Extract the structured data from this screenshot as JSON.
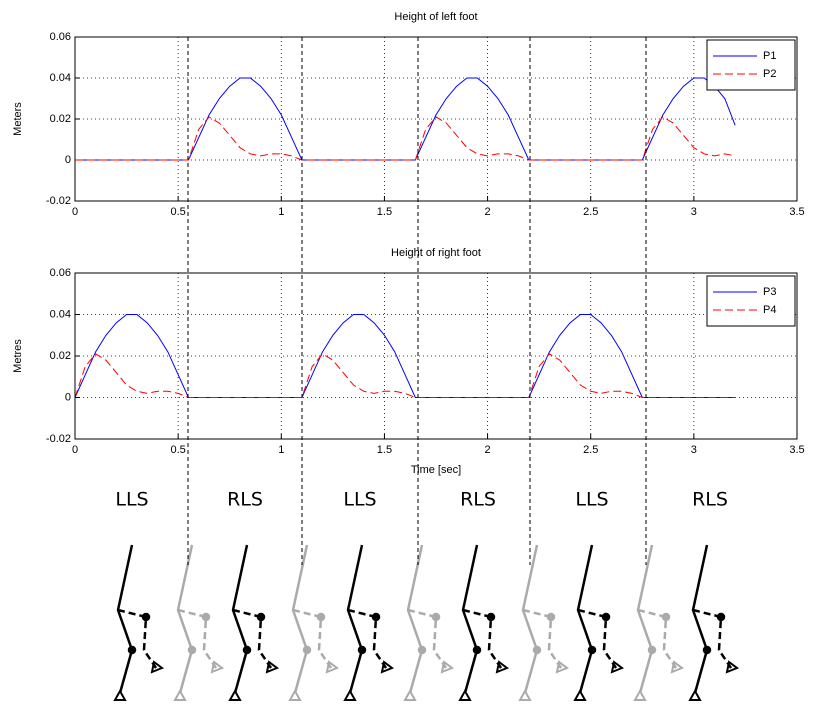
{
  "chart_data": [
    {
      "type": "line",
      "title": "Height of left foot",
      "ylabel": "Meters",
      "x": [
        0,
        0.05,
        0.1,
        0.15,
        0.2,
        0.25,
        0.3,
        0.35,
        0.4,
        0.45,
        0.5,
        0.55,
        0.6,
        0.65,
        0.7,
        0.75,
        0.8,
        0.85,
        0.9,
        0.95,
        1,
        1.05,
        1.1,
        1.15,
        1.2,
        1.25,
        1.3,
        1.35,
        1.4,
        1.45,
        1.5,
        1.55,
        1.6,
        1.65,
        1.7,
        1.75,
        1.8,
        1.85,
        1.9,
        1.95,
        2,
        2.05,
        2.1,
        2.15,
        2.2,
        2.25,
        2.3,
        2.35,
        2.4,
        2.45,
        2.5,
        2.55,
        2.6,
        2.65,
        2.7,
        2.75,
        2.8,
        2.85,
        2.9,
        2.95,
        3,
        3.05,
        3.1,
        3.15,
        3.2
      ],
      "series": [
        {
          "name": "P1",
          "color": "#0000ff",
          "dash": false,
          "values": [
            0,
            0,
            0,
            0,
            0,
            0,
            0,
            0,
            0,
            0,
            0,
            0,
            0.011,
            0.022,
            0.03,
            0.036,
            0.04,
            0.04,
            0.036,
            0.03,
            0.022,
            0.011,
            0,
            0,
            0,
            0,
            0,
            0,
            0,
            0,
            0,
            0,
            0,
            0,
            0.011,
            0.022,
            0.03,
            0.036,
            0.04,
            0.04,
            0.036,
            0.03,
            0.022,
            0.011,
            0,
            0,
            0,
            0,
            0,
            0,
            0,
            0,
            0,
            0,
            0,
            0,
            0.011,
            0.022,
            0.03,
            0.036,
            0.04,
            0.04,
            0.036,
            0.03,
            0.017
          ]
        },
        {
          "name": "P2",
          "color": "#ff0000",
          "dash": true,
          "values": [
            0,
            0,
            0,
            0,
            0,
            0,
            0,
            0,
            0,
            0,
            0,
            0,
            0.015,
            0.021,
            0.018,
            0.012,
            0.006,
            0.003,
            0.002,
            0.003,
            0.003,
            0.002,
            0,
            0,
            0,
            0,
            0,
            0,
            0,
            0,
            0,
            0,
            0,
            0,
            0.015,
            0.021,
            0.018,
            0.012,
            0.006,
            0.003,
            0.002,
            0.003,
            0.003,
            0.002,
            0,
            0,
            0,
            0,
            0,
            0,
            0,
            0,
            0,
            0,
            0,
            0,
            0.015,
            0.021,
            0.018,
            0.012,
            0.006,
            0.003,
            0.002,
            0.003,
            0.002
          ]
        }
      ],
      "xlim": [
        0,
        3.5
      ],
      "xticks": [
        0,
        0.5,
        1,
        1.5,
        2,
        2.5,
        3,
        3.5
      ],
      "ylim": [
        -0.02,
        0.06
      ],
      "yticks": [
        -0.02,
        0,
        0.02,
        0.04,
        0.06
      ],
      "grid": true,
      "legend": "top-right"
    },
    {
      "type": "line",
      "title": "Height of right foot",
      "ylabel": "Metres",
      "xlabel": "Time [sec]",
      "x": [
        0,
        0.05,
        0.1,
        0.15,
        0.2,
        0.25,
        0.3,
        0.35,
        0.4,
        0.45,
        0.5,
        0.55,
        0.6,
        0.65,
        0.7,
        0.75,
        0.8,
        0.85,
        0.9,
        0.95,
        1,
        1.05,
        1.1,
        1.15,
        1.2,
        1.25,
        1.3,
        1.35,
        1.4,
        1.45,
        1.5,
        1.55,
        1.6,
        1.65,
        1.7,
        1.75,
        1.8,
        1.85,
        1.9,
        1.95,
        2,
        2.05,
        2.1,
        2.15,
        2.2,
        2.25,
        2.3,
        2.35,
        2.4,
        2.45,
        2.5,
        2.55,
        2.6,
        2.65,
        2.7,
        2.75,
        2.8,
        2.85,
        2.9,
        2.95,
        3,
        3.05,
        3.1,
        3.15,
        3.2
      ],
      "series": [
        {
          "name": "P3",
          "color": "#0000ff",
          "dash": false,
          "values": [
            0,
            0.011,
            0.022,
            0.03,
            0.036,
            0.04,
            0.04,
            0.036,
            0.03,
            0.022,
            0.011,
            0,
            0,
            0,
            0,
            0,
            0,
            0,
            0,
            0,
            0,
            0,
            0,
            0.011,
            0.022,
            0.03,
            0.036,
            0.04,
            0.04,
            0.036,
            0.03,
            0.022,
            0.011,
            0,
            0,
            0,
            0,
            0,
            0,
            0,
            0,
            0,
            0,
            0,
            0,
            0.011,
            0.022,
            0.03,
            0.036,
            0.04,
            0.04,
            0.036,
            0.03,
            0.022,
            0.011,
            0,
            0,
            0,
            0,
            0,
            0,
            0,
            0,
            0,
            0
          ]
        },
        {
          "name": "P4",
          "color": "#ff0000",
          "dash": true,
          "values": [
            0,
            0.015,
            0.021,
            0.018,
            0.012,
            0.006,
            0.003,
            0.002,
            0.003,
            0.003,
            0.002,
            0,
            0,
            0,
            0,
            0,
            0,
            0,
            0,
            0,
            0,
            0,
            0,
            0.015,
            0.021,
            0.018,
            0.012,
            0.006,
            0.003,
            0.002,
            0.003,
            0.003,
            0.002,
            0,
            0,
            0,
            0,
            0,
            0,
            0,
            0,
            0,
            0,
            0,
            0,
            0.015,
            0.021,
            0.018,
            0.012,
            0.006,
            0.003,
            0.002,
            0.003,
            0.003,
            0.002,
            0,
            0,
            0,
            0,
            0,
            0,
            0,
            0,
            0,
            0
          ]
        }
      ],
      "xlim": [
        0,
        3.5
      ],
      "xticks": [
        0,
        0.5,
        1,
        1.5,
        2,
        2.5,
        3,
        3.5
      ],
      "ylim": [
        -0.02,
        0.06
      ],
      "yticks": [
        -0.02,
        0,
        0.02,
        0.04,
        0.06
      ],
      "grid": true,
      "legend": "top-right"
    }
  ],
  "phase_labels": [
    "LLS",
    "RLS",
    "LLS",
    "RLS",
    "LLS",
    "RLS"
  ]
}
